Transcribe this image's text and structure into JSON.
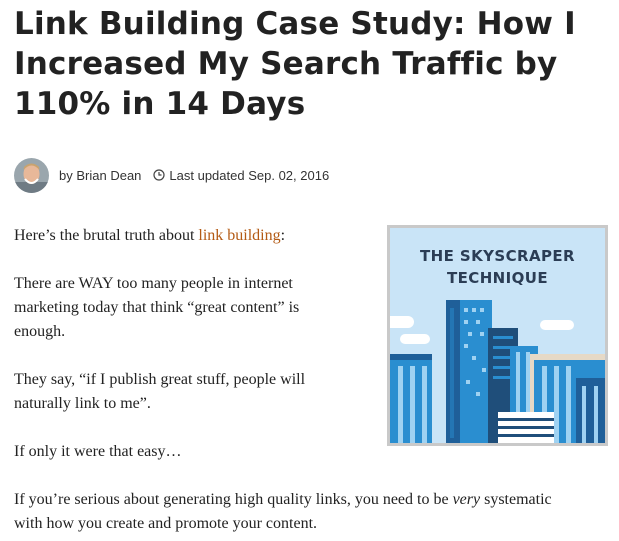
{
  "article": {
    "title_line1": "Link Building Case Study: How I",
    "title_line2": "Increased My Search Traffic by",
    "title_line3": "110% in 14 Days"
  },
  "meta": {
    "author_prefix": "by",
    "author": "Brian Dean",
    "updated_label": "Last updated",
    "updated_date": "Sep. 02, 2016",
    "icons": [
      "avatar",
      "clock-icon"
    ]
  },
  "body": {
    "p1_before": "Here’s the brutal truth about ",
    "p1_link": "link building",
    "p1_after": ":",
    "p2_line1": "There are WAY too many people in internet",
    "p2_line2": "marketing today that think “great content” is",
    "p2_line3": "enough.",
    "p3_line1": "They say, “if I publish great stuff, people will",
    "p3_line2": "naturally link to me”.",
    "p4": "If only it were that easy…",
    "p5_before": "If you’re serious about generating high quality links, you need to be ",
    "p5_em": "very",
    "p5_after": " systematic",
    "p5_line2": "with how you create and promote your content."
  },
  "figure": {
    "line1": "THE SKYSCRAPER",
    "line2": "TECHNIQUE"
  },
  "colors": {
    "link": "#b35a14",
    "figure_bg": "#c9e4f7",
    "figure_title": "#2b3d55",
    "building_blue": "#2a8ed0",
    "building_dark": "#1f5f99"
  }
}
